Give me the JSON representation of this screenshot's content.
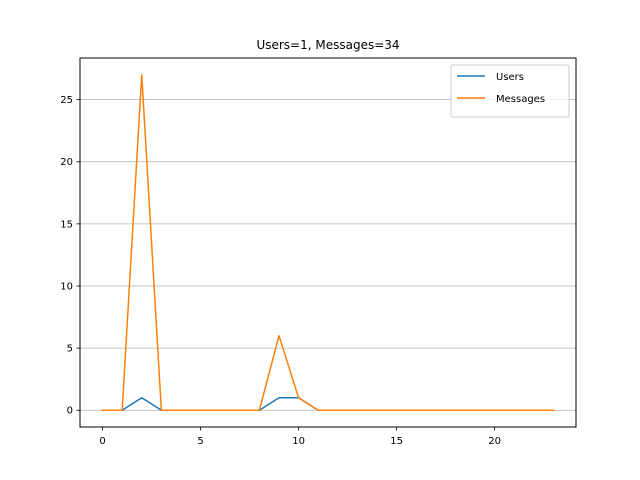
{
  "chart_data": {
    "type": "line",
    "title": "Users=1, Messages=34",
    "xlabel": "",
    "ylabel": "",
    "x": [
      0,
      1,
      2,
      3,
      4,
      5,
      6,
      7,
      8,
      9,
      10,
      11,
      12,
      13,
      14,
      15,
      16,
      17,
      18,
      19,
      20,
      21,
      22,
      23
    ],
    "series": [
      {
        "name": "Users",
        "color": "#1f77b4",
        "values": [
          0,
          0,
          1,
          0,
          0,
          0,
          0,
          0,
          0,
          1,
          1,
          0,
          0,
          0,
          0,
          0,
          0,
          0,
          0,
          0,
          0,
          0,
          0,
          0
        ]
      },
      {
        "name": "Messages",
        "color": "#ff7f0e",
        "values": [
          0,
          0,
          27,
          0,
          0,
          0,
          0,
          0,
          0,
          6,
          1,
          0,
          0,
          0,
          0,
          0,
          0,
          0,
          0,
          0,
          0,
          0,
          0,
          0
        ]
      }
    ],
    "xlim": [
      -1.15,
      24.15
    ],
    "ylim": [
      -1.35,
      28.35
    ],
    "xticks": [
      0,
      5,
      10,
      15,
      20
    ],
    "yticks": [
      0,
      5,
      10,
      15,
      20,
      25
    ],
    "grid": "y-axis horizontal",
    "legend_position": "top-right"
  }
}
